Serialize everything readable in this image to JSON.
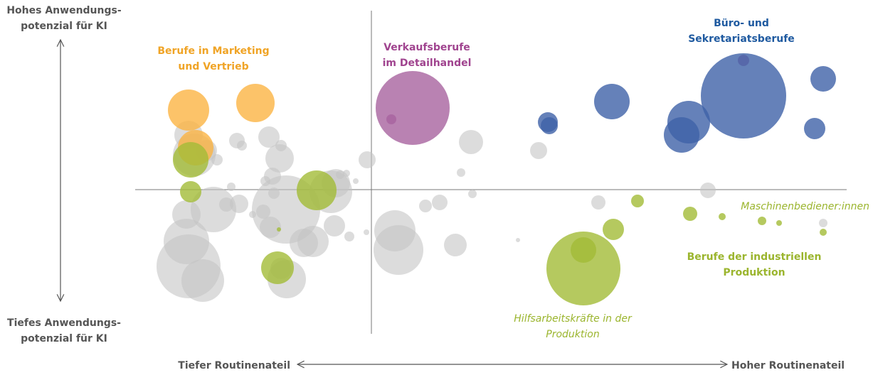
{
  "chart_data": {
    "type": "bubble",
    "xlim": [
      0,
      1000
    ],
    "ylim": [
      0,
      455
    ],
    "xref": 332,
    "yref": 203,
    "y_axis_top": [
      "Hohes Anwendungs-",
      "potenzial für KI"
    ],
    "y_axis_bottom": [
      "Tiefes Anwendungs-",
      "potenzial für KI"
    ],
    "x_axis_left": "Tiefer Routinenateil",
    "x_axis_right": "Hoher Routinenateil",
    "annotations": [
      {
        "lines": [
          "Berufe in Marketing",
          "und Vertrieb"
        ],
        "color": "#f0a426",
        "italic": false
      },
      {
        "lines": [
          "Verkaufsberufe",
          "im Detailhandel"
        ],
        "color": "#a0448f",
        "italic": false
      },
      {
        "lines": [
          "Büro- und",
          "Sekretariatsberufe"
        ],
        "color": "#1f5aa0",
        "italic": false
      },
      {
        "lines": [
          "Maschinenbediener:innen"
        ],
        "color": "#9bb52e",
        "italic": true
      },
      {
        "lines": [
          "Berufe der industriellen",
          "Produktion"
        ],
        "color": "#9bb52e",
        "italic": false
      },
      {
        "lines": [
          "Hilfsarbeitskräfte in der",
          "Produktion"
        ],
        "color": "#9bb52e",
        "italic": true
      }
    ],
    "series": [
      {
        "color": "#c4c4c4",
        "x": [
          75,
          95,
          72,
          72,
          110,
          75,
          83,
          100,
          115,
          150,
          143,
          188,
          205,
          203,
          193,
          183,
          135,
          195,
          212,
          275,
          282,
          297,
          288,
          310,
          326,
          128,
          146,
          165,
          180,
          190,
          237,
          250,
          280,
          301,
          205,
          213,
          325,
          365,
          370,
          408,
          428,
          450,
          472,
          458,
          474,
          567,
          538,
          651,
          805,
          967
        ],
        "y": [
          95,
          75,
          130,
          168,
          175,
          280,
          252,
          258,
          245,
          265,
          272,
          277,
          265,
          247,
          222,
          215,
          207,
          198,
          175,
          200,
          212,
          226,
          224,
          215,
          245,
          182,
          183,
          168,
          172,
          150,
          128,
          130,
          152,
          137,
          92,
          77,
          143,
          145,
          118,
          180,
          185,
          125,
          270,
          227,
          197,
          258,
          132,
          185,
          202,
          156
        ],
        "sizes": [
          45,
          30,
          32,
          20,
          32,
          20,
          30,
          15,
          8,
          7,
          11,
          15,
          8,
          20,
          12,
          7,
          6,
          8,
          48,
          30,
          20,
          5,
          6,
          4,
          12,
          10,
          13,
          5,
          10,
          15,
          20,
          22,
          15,
          7,
          15,
          27,
          4,
          29,
          35,
          9,
          11,
          16,
          17,
          6,
          6,
          12,
          3,
          10,
          11,
          6
        ]
      },
      {
        "color": "#fbb443",
        "x": [
          75,
          169,
          85
        ],
        "y": [
          315,
          325,
          262
        ],
        "sizes": [
          29,
          27,
          25
        ]
      },
      {
        "color": "#a8639f",
        "x": [
          390,
          360,
          855
        ],
        "y": [
          318,
          302,
          385
        ],
        "sizes": [
          52,
          7,
          8
        ]
      },
      {
        "color": "#3f62a8",
        "x": [
          855,
          778,
          768,
          670,
          580,
          582,
          967,
          955
        ],
        "y": [
          335,
          298,
          280,
          327,
          298,
          293,
          359,
          289
        ],
        "sizes": [
          60,
          30,
          25,
          25,
          14,
          12,
          18,
          15
        ]
      },
      {
        "color": "#a2bb37",
        "x": [
          78,
          255,
          78,
          200,
          202,
          630,
          630,
          672,
          706,
          780,
          825,
          881,
          905,
          967
        ],
        "y": [
          245,
          202,
          200,
          93,
          147,
          92,
          118,
          147,
          187,
          169,
          165,
          159,
          156,
          143
        ],
        "sizes": [
          25,
          28,
          15,
          23,
          3,
          52,
          18,
          15,
          9,
          10,
          5,
          6,
          4,
          5
        ]
      }
    ]
  }
}
